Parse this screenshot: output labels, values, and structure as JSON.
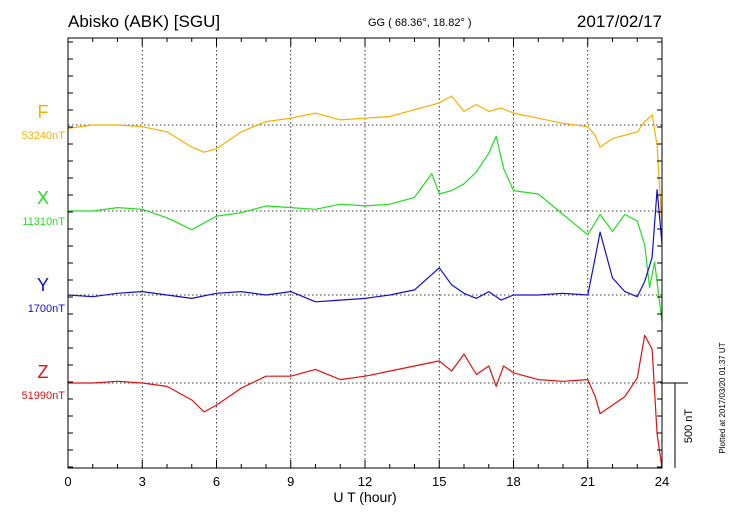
{
  "header": {
    "title": "Abisko (ABK)  [SGU]",
    "coords": "GG ( 68.36°,  18.82° )",
    "date": "2017/02/17"
  },
  "footnote": "Plotted at 2017/03/20 01:37 UT",
  "chart_data": {
    "type": "line",
    "title": "Abisko (ABK)  [SGU]",
    "xlabel": "U T (hour)",
    "ylabel": "",
    "xlim": [
      0,
      24
    ],
    "xticks": [
      "0",
      "3",
      "6",
      "9",
      "12",
      "15",
      "18",
      "21",
      "24"
    ],
    "scale_bar": {
      "label": "500 nT",
      "value_nT": 500
    },
    "grid": true,
    "units": "nT (offset from baseline)",
    "series": [
      {
        "name": "F",
        "baseline": "53240nT",
        "color": "#F5B000",
        "x": [
          0,
          1,
          2,
          3,
          4,
          5,
          5.5,
          6,
          7,
          8,
          9,
          10,
          11,
          12,
          13,
          14,
          15,
          15.5,
          16,
          16.5,
          17,
          17.5,
          18,
          19,
          20,
          21,
          21.3,
          21.5,
          22,
          22.5,
          23,
          23.3,
          23.6,
          23.8,
          24
        ],
        "y": [
          -20,
          0,
          0,
          -10,
          -40,
          -130,
          -160,
          -140,
          -40,
          20,
          40,
          70,
          30,
          40,
          50,
          90,
          130,
          170,
          80,
          120,
          80,
          100,
          70,
          40,
          10,
          -10,
          -60,
          -130,
          -80,
          -60,
          -40,
          20,
          60,
          -120,
          -600
        ]
      },
      {
        "name": "X",
        "baseline": "11310nT",
        "color": "#22DD22",
        "x": [
          0,
          1,
          2,
          3,
          4,
          5,
          6,
          7,
          8,
          9,
          10,
          11,
          12,
          13,
          14,
          14.7,
          15,
          15.5,
          16,
          16.5,
          17,
          17.3,
          17.6,
          18,
          19,
          20,
          21,
          21.5,
          22,
          22.5,
          23,
          23.3,
          23.5,
          23.7,
          24
        ],
        "y": [
          0,
          0,
          20,
          10,
          -40,
          -110,
          -30,
          -10,
          30,
          20,
          10,
          40,
          30,
          40,
          80,
          220,
          100,
          120,
          160,
          230,
          340,
          440,
          250,
          120,
          100,
          -20,
          -140,
          -20,
          -120,
          -20,
          -60,
          -200,
          -450,
          -300,
          -650
        ]
      },
      {
        "name": "Y",
        "baseline": "1700nT",
        "color": "#1010CC",
        "x": [
          0,
          1,
          2,
          3,
          4,
          5,
          6,
          7,
          8,
          9,
          10,
          11,
          12,
          13,
          14,
          15,
          15.5,
          16,
          16.5,
          17,
          17.5,
          18,
          19,
          20,
          21,
          21.3,
          21.5,
          22,
          22.5,
          23,
          23.3,
          23.6,
          23.8,
          24
        ],
        "y": [
          0,
          -10,
          10,
          20,
          0,
          -20,
          10,
          20,
          0,
          20,
          -40,
          -30,
          -20,
          0,
          30,
          160,
          60,
          10,
          -20,
          20,
          -30,
          0,
          0,
          10,
          0,
          220,
          370,
          100,
          20,
          -10,
          80,
          220,
          620,
          300
        ]
      },
      {
        "name": "Z",
        "baseline": "51990nT",
        "color": "#E01010",
        "x": [
          0,
          1,
          2,
          3,
          4,
          5,
          5.5,
          6,
          7,
          8,
          9,
          10,
          11,
          12,
          13,
          14,
          15,
          15.5,
          16,
          16.5,
          17,
          17.3,
          17.6,
          18,
          19,
          20,
          21,
          21.3,
          21.5,
          22,
          22.5,
          23,
          23.3,
          23.6,
          23.8,
          24
        ],
        "y": [
          0,
          0,
          10,
          0,
          -20,
          -100,
          -170,
          -130,
          -30,
          40,
          40,
          80,
          20,
          40,
          70,
          100,
          130,
          70,
          170,
          50,
          100,
          -20,
          100,
          60,
          20,
          10,
          20,
          -80,
          -180,
          -130,
          -80,
          30,
          280,
          200,
          -300,
          -500
        ]
      }
    ]
  }
}
